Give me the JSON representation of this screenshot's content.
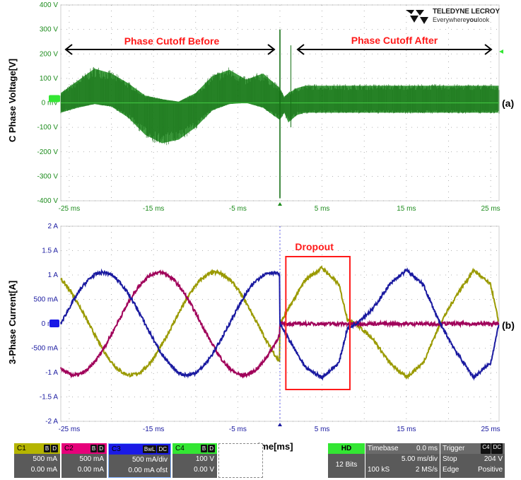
{
  "brand": {
    "name": "TELEDYNE LECROY",
    "tagline_prefix": "Everywhere",
    "tagline_bold": "you",
    "tagline_suffix": "look"
  },
  "panel_labels": {
    "a": "(a)",
    "b": "(b)"
  },
  "annotations": {
    "before": "Phase Cutoff Before",
    "after": "Phase Cutoff After",
    "dropout": "Dropout"
  },
  "x_axis_title": "Time[ms]",
  "colors": {
    "voltage": "#1e8c1e",
    "c1": "#9a9a00",
    "c2": "#a0005a",
    "c3": "#1a1aa0",
    "grid": "#9a9a9a",
    "annotation": "#ff1a1a"
  },
  "chart_data": [
    {
      "type": "line",
      "ylabel": "C Phase Voltage[V]",
      "xlabel": "",
      "x_ticks": [
        "-25 ms",
        "-15 ms",
        "-5 ms",
        "5 ms",
        "15 ms",
        "25 ms"
      ],
      "x_tick_values": [
        -25,
        -15,
        -5,
        5,
        15,
        25
      ],
      "y_ticks": [
        "400 V",
        "300 V",
        "200 V",
        "100 V",
        "0 mV",
        "-100 V",
        "-200 V",
        "-300 V",
        "-400 V"
      ],
      "y_tick_values": [
        400,
        300,
        200,
        100,
        0,
        -100,
        -200,
        -300,
        -400
      ],
      "xlim": [
        -26,
        26
      ],
      "ylim": [
        -400,
        400
      ],
      "series": [
        {
          "channel": "C4",
          "upper_envelope": {
            "x": [
              -26,
              -24,
              -22,
              -20,
              -18,
              -16,
              -14,
              -12,
              -10,
              -8,
              -6,
              -4,
              -2,
              0,
              0.5,
              1,
              2,
              3,
              26
            ],
            "y": [
              40,
              90,
              140,
              120,
              80,
              30,
              15,
              5,
              40,
              110,
              135,
              95,
              120,
              60,
              25,
              40,
              60,
              70,
              70
            ]
          },
          "lower_envelope": {
            "x": [
              -26,
              -24,
              -22,
              -20,
              -18,
              -16,
              -14,
              -12,
              -10,
              -8,
              -6,
              -4,
              -2,
              0,
              0.5,
              1,
              2,
              3,
              26
            ],
            "y": [
              -40,
              -20,
              -5,
              -15,
              -60,
              -130,
              -165,
              -150,
              -100,
              -30,
              -5,
              0,
              -20,
              -70,
              -40,
              -80,
              -50,
              -40,
              -40
            ]
          }
        }
      ]
    },
    {
      "type": "line",
      "ylabel": "3-Phase Current[A]",
      "xlabel": "",
      "x_ticks": [
        "-25 ms",
        "-15 ms",
        "-5 ms",
        "5 ms",
        "15 ms",
        "25 ms"
      ],
      "x_tick_values": [
        -25,
        -15,
        -5,
        5,
        15,
        25
      ],
      "y_ticks": [
        "2 A",
        "1.5 A",
        "1 A",
        "500 mA",
        "0 mA",
        "-500 mA",
        "-1 A",
        "-1.5 A",
        "-2 A"
      ],
      "y_tick_values": [
        2,
        1.5,
        1,
        0.5,
        0,
        -0.5,
        -1,
        -1.5,
        -2
      ],
      "xlim": [
        -26,
        26
      ],
      "ylim": [
        -2,
        2
      ],
      "amplitude_A": 1.05,
      "period_ms": 20,
      "series": [
        {
          "channel": "C1",
          "before_phase_deg": 0,
          "after": {
            "x": [
              0,
              1,
              3,
              5,
              7,
              8,
              9,
              11,
              13,
              15,
              17,
              19,
              21,
              23,
              25,
              26
            ],
            "y": [
              0,
              0.3,
              0.9,
              1.15,
              0.8,
              0.1,
              0,
              -0.3,
              -0.8,
              -1.1,
              -0.8,
              0,
              0.6,
              1.1,
              0.8,
              0
            ]
          }
        },
        {
          "channel": "C2",
          "before_phase_deg": 120,
          "after": {
            "x": [
              -0.5,
              26
            ],
            "y": [
              0,
              0
            ]
          }
        },
        {
          "channel": "C3",
          "before_phase_deg": 240,
          "after": {
            "x": [
              0,
              1,
              3,
              5,
              7,
              8,
              9,
              11,
              13,
              15,
              17,
              19,
              21,
              23,
              25,
              26
            ],
            "y": [
              0,
              -0.3,
              -0.9,
              -1.1,
              -0.8,
              -0.1,
              0,
              0.3,
              0.8,
              1.1,
              0.8,
              0,
              -0.6,
              -1.1,
              -0.8,
              0
            ]
          }
        }
      ],
      "dropout_box_x": [
        0.7,
        8.3
      ]
    }
  ],
  "status_bar": {
    "channels": [
      {
        "name": "C1",
        "flags": [
          "B",
          "D"
        ],
        "line1": "500 mA",
        "line2": "0.00 mA",
        "color": "#b5b500"
      },
      {
        "name": "C2",
        "flags": [
          "B",
          "D"
        ],
        "line1": "500 mA",
        "line2": "0.00 mA",
        "color": "#e6007a"
      },
      {
        "name": "C3",
        "flags": [
          "BwL",
          "DC"
        ],
        "line1": "500 mA/div",
        "line2": "0.00 mA ofst",
        "color": "#1a1ae6"
      },
      {
        "name": "C4",
        "flags": [
          "B",
          "D"
        ],
        "line1": "100 V",
        "line2": "0.00 V",
        "color": "#33e633"
      }
    ],
    "hd": {
      "label": "HD",
      "bits": "12 Bits"
    },
    "timebase": {
      "label": "Timebase",
      "delay": "0.0 ms",
      "div": "5.00 ms/div",
      "samples": "100 kS",
      "rate": "2 MS/s"
    },
    "trigger": {
      "label": "Trigger",
      "ch": "C4",
      "coupling": "DC",
      "mode": "Stop",
      "level": "204 V",
      "type": "Edge",
      "slope": "Positive"
    }
  }
}
